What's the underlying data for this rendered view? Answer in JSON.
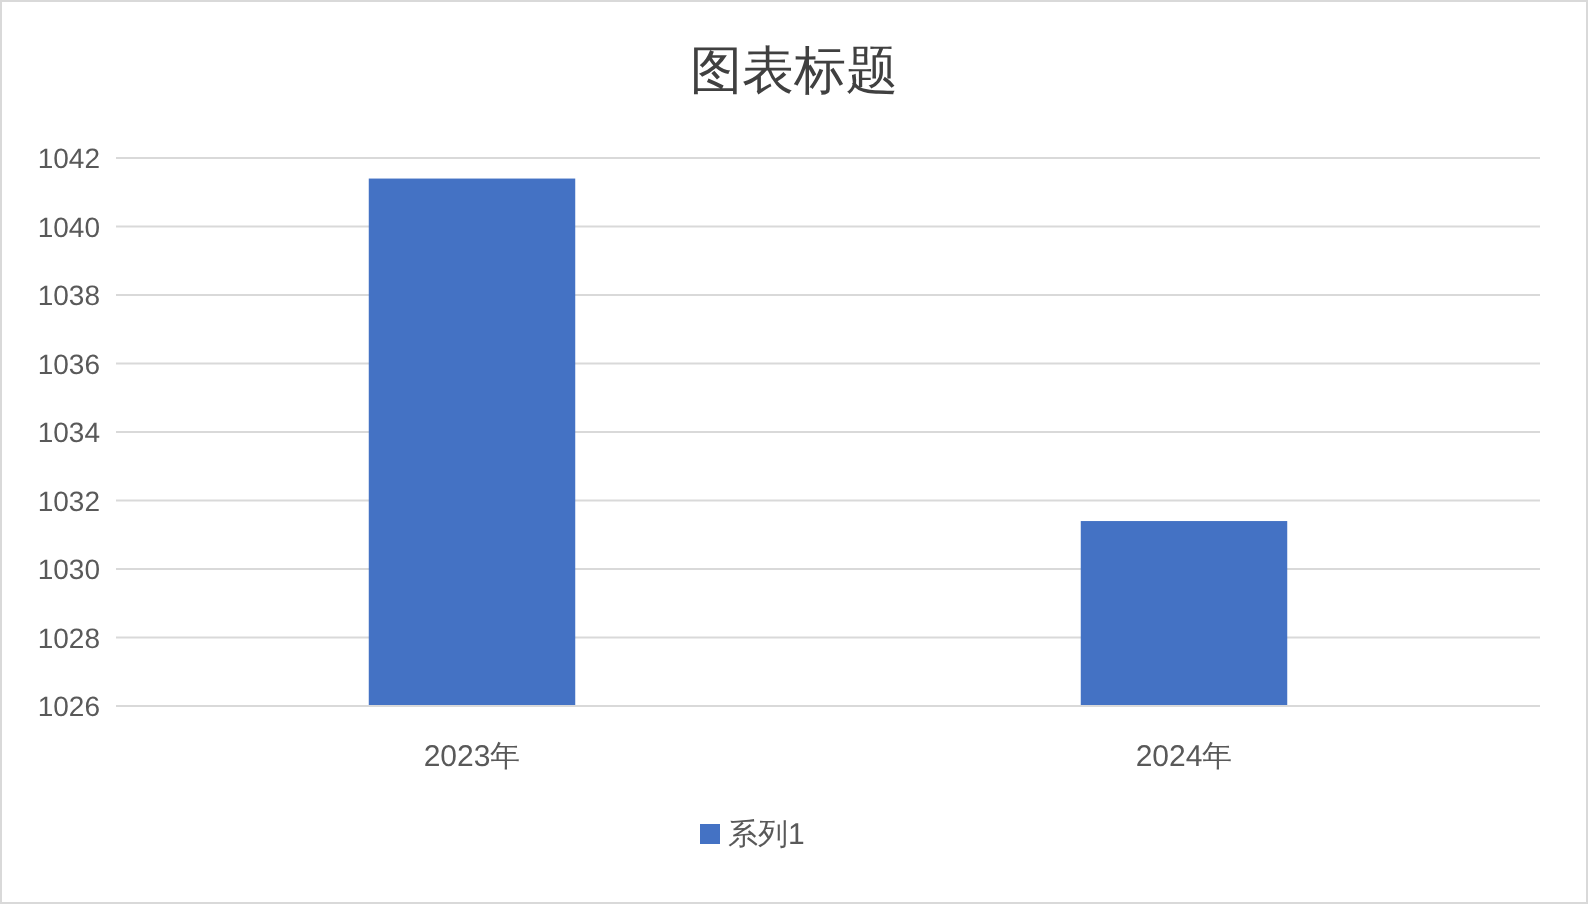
{
  "chart_data": {
    "type": "bar",
    "title": "图表标题",
    "categories": [
      "2023年",
      "2024年"
    ],
    "series": [
      {
        "name": "系列1",
        "color": "#4472c4",
        "values": [
          1041.4,
          1031.4
        ]
      }
    ],
    "ylim": [
      1026,
      1042
    ],
    "yticks": [
      1026,
      1028,
      1030,
      1032,
      1034,
      1036,
      1038,
      1040,
      1042
    ],
    "grid": "y",
    "legend": "bottom"
  }
}
